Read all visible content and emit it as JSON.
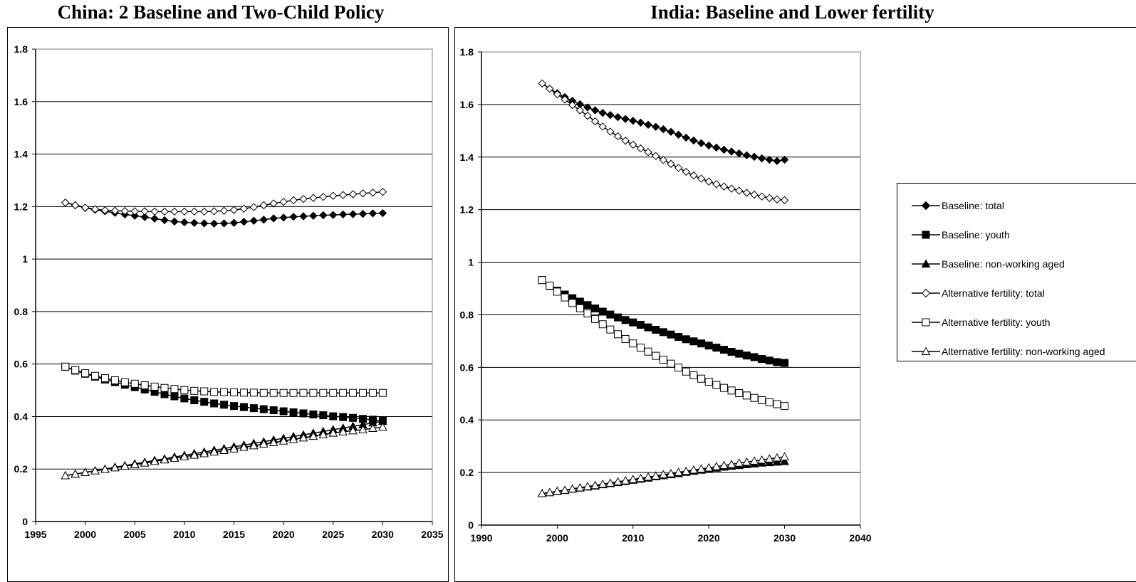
{
  "chart_data": [
    {
      "type": "line",
      "title": "China: 2 Baseline and Two-Child Policy",
      "xlim": [
        1995,
        2035
      ],
      "ylim": [
        0,
        1.8
      ],
      "xticks": [
        "1995",
        "2000",
        "2005",
        "2010",
        "2015",
        "2020",
        "2025",
        "2030",
        "2035"
      ],
      "yticks": [
        "0",
        "0.2",
        "0.4",
        "0.6",
        "0.8",
        "1",
        "1.2",
        "1.4",
        "1.6",
        "1.8"
      ],
      "grid": "horizontal",
      "x": [
        1998,
        1999,
        2000,
        2001,
        2002,
        2003,
        2004,
        2005,
        2006,
        2007,
        2008,
        2009,
        2010,
        2011,
        2012,
        2013,
        2014,
        2015,
        2016,
        2017,
        2018,
        2019,
        2020,
        2021,
        2022,
        2023,
        2024,
        2025,
        2026,
        2027,
        2028,
        2029,
        2030
      ],
      "series": [
        {
          "name": "Baseline: total",
          "marker": "diamond",
          "filled": true,
          "values": [
            1.215,
            1.205,
            1.195,
            1.188,
            1.182,
            1.176,
            1.17,
            1.165,
            1.16,
            1.154,
            1.148,
            1.143,
            1.14,
            1.138,
            1.136,
            1.135,
            1.136,
            1.138,
            1.142,
            1.146,
            1.15,
            1.155,
            1.158,
            1.161,
            1.163,
            1.165,
            1.167,
            1.168,
            1.17,
            1.171,
            1.172,
            1.174,
            1.175
          ]
        },
        {
          "name": "Baseline: youth",
          "marker": "square",
          "filled": true,
          "values": [
            0.59,
            0.575,
            0.563,
            0.552,
            0.541,
            0.531,
            0.521,
            0.512,
            0.503,
            0.494,
            0.485,
            0.477,
            0.469,
            0.462,
            0.456,
            0.45,
            0.445,
            0.44,
            0.436,
            0.432,
            0.428,
            0.424,
            0.42,
            0.416,
            0.412,
            0.408,
            0.405,
            0.401,
            0.398,
            0.395,
            0.391,
            0.388,
            0.384
          ]
        },
        {
          "name": "Baseline: non-working aged",
          "marker": "triangle",
          "filled": true,
          "values": [
            0.175,
            0.181,
            0.187,
            0.194,
            0.2,
            0.207,
            0.213,
            0.22,
            0.226,
            0.233,
            0.239,
            0.246,
            0.252,
            0.259,
            0.265,
            0.272,
            0.278,
            0.285,
            0.291,
            0.298,
            0.304,
            0.311,
            0.317,
            0.324,
            0.33,
            0.337,
            0.343,
            0.35,
            0.356,
            0.363,
            0.369,
            0.376,
            0.382
          ]
        },
        {
          "name": "Alternative fertility: total",
          "marker": "diamond",
          "filled": false,
          "values": [
            1.215,
            1.205,
            1.196,
            1.19,
            1.186,
            1.184,
            1.183,
            1.182,
            1.182,
            1.181,
            1.181,
            1.181,
            1.181,
            1.181,
            1.181,
            1.182,
            1.184,
            1.187,
            1.192,
            1.198,
            1.205,
            1.212,
            1.218,
            1.224,
            1.229,
            1.233,
            1.237,
            1.241,
            1.244,
            1.247,
            1.25,
            1.253,
            1.256
          ]
        },
        {
          "name": "Alternative fertility: youth",
          "marker": "square",
          "filled": false,
          "values": [
            0.59,
            0.577,
            0.565,
            0.555,
            0.546,
            0.538,
            0.531,
            0.525,
            0.519,
            0.514,
            0.509,
            0.505,
            0.501,
            0.498,
            0.496,
            0.494,
            0.493,
            0.492,
            0.491,
            0.491,
            0.49,
            0.49,
            0.49,
            0.49,
            0.49,
            0.49,
            0.49,
            0.49,
            0.49,
            0.49,
            0.49,
            0.49,
            0.49
          ]
        },
        {
          "name": "Alternative fertility: non-working aged",
          "marker": "triangle",
          "filled": false,
          "values": [
            0.175,
            0.181,
            0.187,
            0.193,
            0.199,
            0.205,
            0.211,
            0.217,
            0.223,
            0.229,
            0.235,
            0.241,
            0.247,
            0.253,
            0.259,
            0.265,
            0.271,
            0.277,
            0.283,
            0.289,
            0.295,
            0.301,
            0.307,
            0.313,
            0.319,
            0.325,
            0.331,
            0.337,
            0.342,
            0.346,
            0.35,
            0.355,
            0.36
          ]
        }
      ]
    },
    {
      "type": "line",
      "title": "India: Baseline and Lower fertility",
      "xlim": [
        1990,
        2040
      ],
      "ylim": [
        0,
        1.8
      ],
      "xticks": [
        "1990",
        "2000",
        "2010",
        "2020",
        "2030",
        "2040"
      ],
      "yticks": [
        "0",
        "0.2",
        "0.4",
        "0.6",
        "0.8",
        "1",
        "1.2",
        "1.4",
        "1.6",
        "1.8"
      ],
      "grid": "horizontal",
      "legend": "right",
      "x": [
        1998,
        1999,
        2000,
        2001,
        2002,
        2003,
        2004,
        2005,
        2006,
        2007,
        2008,
        2009,
        2010,
        2011,
        2012,
        2013,
        2014,
        2015,
        2016,
        2017,
        2018,
        2019,
        2020,
        2021,
        2022,
        2023,
        2024,
        2025,
        2026,
        2027,
        2028,
        2029,
        2030
      ],
      "series": [
        {
          "name": "Baseline: total",
          "marker": "diamond",
          "filled": true,
          "values": [
            1.68,
            1.66,
            1.643,
            1.628,
            1.614,
            1.601,
            1.589,
            1.578,
            1.568,
            1.56,
            1.552,
            1.545,
            1.538,
            1.531,
            1.523,
            1.515,
            1.506,
            1.496,
            1.485,
            1.474,
            1.463,
            1.453,
            1.444,
            1.436,
            1.428,
            1.421,
            1.414,
            1.407,
            1.401,
            1.395,
            1.39,
            1.385,
            1.39
          ]
        },
        {
          "name": "Baseline: youth",
          "marker": "square",
          "filled": true,
          "values": [
            0.932,
            0.91,
            0.892,
            0.877,
            0.863,
            0.85,
            0.837,
            0.824,
            0.812,
            0.801,
            0.79,
            0.78,
            0.771,
            0.762,
            0.752,
            0.743,
            0.734,
            0.725,
            0.716,
            0.707,
            0.699,
            0.691,
            0.683,
            0.675,
            0.667,
            0.659,
            0.652,
            0.645,
            0.639,
            0.632,
            0.626,
            0.62,
            0.617
          ]
        },
        {
          "name": "Baseline: non-working aged",
          "marker": "triangle",
          "filled": true,
          "values": [
            0.12,
            0.124,
            0.128,
            0.132,
            0.137,
            0.141,
            0.145,
            0.149,
            0.154,
            0.158,
            0.162,
            0.166,
            0.171,
            0.175,
            0.179,
            0.184,
            0.188,
            0.192,
            0.196,
            0.201,
            0.205,
            0.209,
            0.213,
            0.217,
            0.221,
            0.224,
            0.227,
            0.23,
            0.233,
            0.236,
            0.238,
            0.24,
            0.242
          ]
        },
        {
          "name": "Alternative fertility: total",
          "marker": "diamond",
          "filled": false,
          "values": [
            1.68,
            1.66,
            1.639,
            1.619,
            1.598,
            1.578,
            1.557,
            1.536,
            1.516,
            1.497,
            1.479,
            1.462,
            1.447,
            1.433,
            1.419,
            1.404,
            1.389,
            1.374,
            1.359,
            1.344,
            1.33,
            1.318,
            1.307,
            1.297,
            1.288,
            1.28,
            1.272,
            1.264,
            1.257,
            1.25,
            1.244,
            1.239,
            1.236
          ]
        },
        {
          "name": "Alternative fertility: youth",
          "marker": "square",
          "filled": false,
          "values": [
            0.932,
            0.911,
            0.888,
            0.866,
            0.845,
            0.825,
            0.805,
            0.784,
            0.764,
            0.744,
            0.726,
            0.708,
            0.691,
            0.675,
            0.66,
            0.644,
            0.629,
            0.614,
            0.599,
            0.584,
            0.57,
            0.557,
            0.545,
            0.533,
            0.522,
            0.512,
            0.502,
            0.493,
            0.484,
            0.475,
            0.467,
            0.46,
            0.453
          ]
        },
        {
          "name": "Alternative fertility: non-working aged",
          "marker": "triangle",
          "filled": false,
          "values": [
            0.12,
            0.124,
            0.129,
            0.133,
            0.138,
            0.142,
            0.147,
            0.151,
            0.156,
            0.16,
            0.165,
            0.169,
            0.174,
            0.178,
            0.183,
            0.187,
            0.192,
            0.196,
            0.201,
            0.205,
            0.21,
            0.214,
            0.218,
            0.223,
            0.227,
            0.231,
            0.236,
            0.24,
            0.244,
            0.248,
            0.252,
            0.256,
            0.26
          ]
        }
      ]
    }
  ]
}
